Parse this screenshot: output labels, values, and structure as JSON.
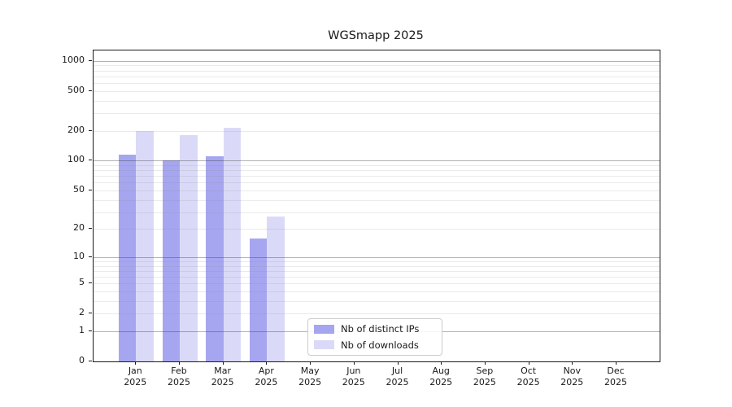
{
  "chart_data": {
    "type": "bar",
    "title": "WGSmapp 2025",
    "categories": [
      "Jan 2025",
      "Feb 2025",
      "Mar 2025",
      "Apr 2025",
      "May 2025",
      "Jun 2025",
      "Jul 2025",
      "Aug 2025",
      "Sep 2025",
      "Oct 2025",
      "Nov 2025",
      "Dec 2025"
    ],
    "series": [
      {
        "name": "Nb of distinct IPs",
        "color": "#a6a6f0",
        "values": [
          114,
          100,
          110,
          16,
          0,
          0,
          0,
          0,
          0,
          0,
          0,
          0
        ]
      },
      {
        "name": "Nb of downloads",
        "color": "#dadaf8",
        "values": [
          200,
          182,
          215,
          27,
          0,
          0,
          0,
          0,
          0,
          0,
          0,
          0
        ]
      }
    ],
    "y_ticks": [
      0,
      1,
      2,
      5,
      10,
      20,
      50,
      100,
      200,
      500,
      1000
    ],
    "y_scale": "log1p",
    "ylim": [
      0,
      1270
    ],
    "xlabel": "",
    "ylabel": "",
    "grid": "major-and-minor",
    "legend_position": "inside-bottom-center"
  },
  "colors": {
    "grid_major": "#b3b3b3",
    "grid_minor": "#eaeaea",
    "axis": "#1a1a1a",
    "text": "#191919",
    "background": "#ffffff"
  }
}
